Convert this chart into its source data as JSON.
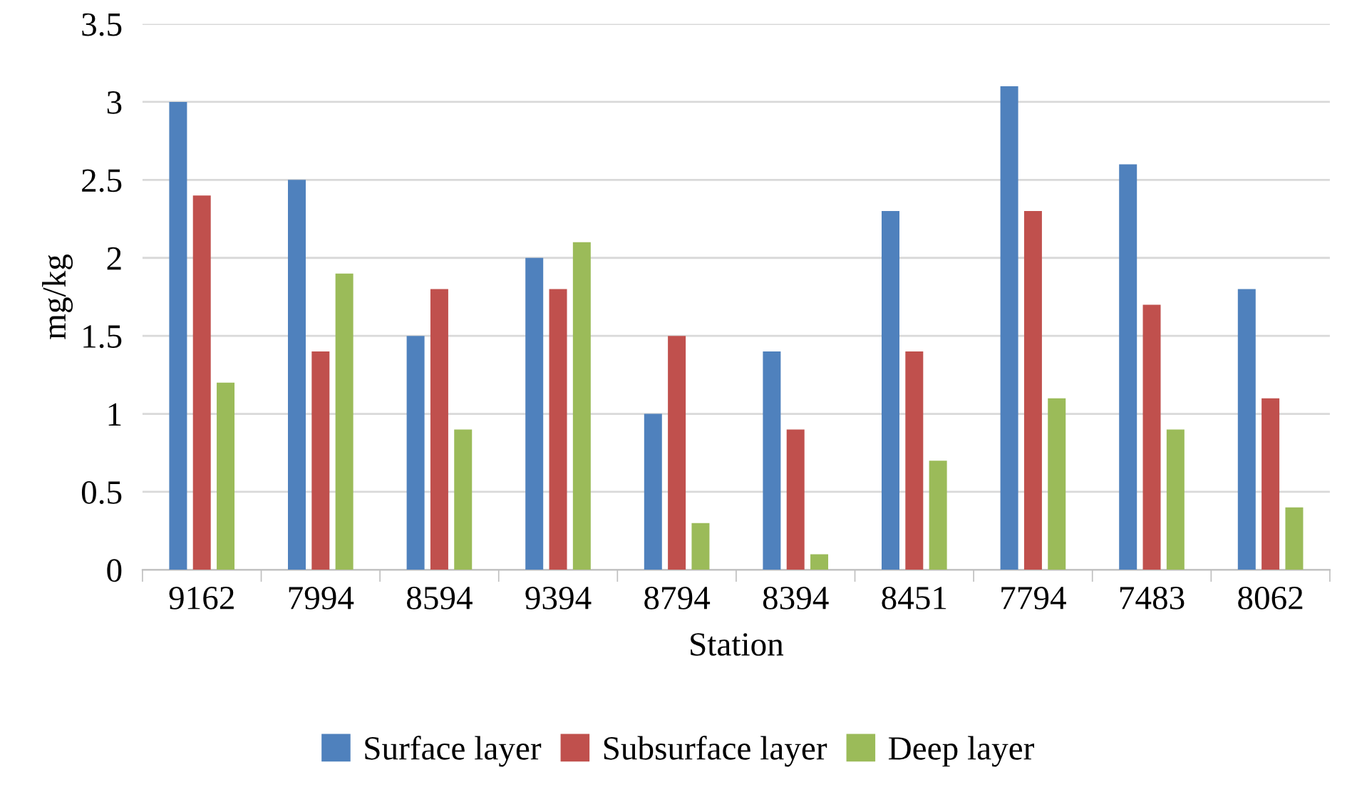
{
  "chart_data": {
    "type": "bar",
    "xlabel": "Station",
    "ylabel": "mg/kg",
    "categories": [
      "9162",
      "7994",
      "8594",
      "9394",
      "8794",
      "8394",
      "8451",
      "7794",
      "7483",
      "8062"
    ],
    "series": [
      {
        "name": "Surface layer",
        "color": "#4f81bd",
        "values": [
          3.0,
          2.5,
          1.5,
          2.0,
          1.0,
          1.4,
          2.3,
          3.1,
          2.6,
          1.8
        ]
      },
      {
        "name": "Subsurface layer",
        "color": "#c0504d",
        "values": [
          2.4,
          1.4,
          1.8,
          1.8,
          1.5,
          0.9,
          1.4,
          2.3,
          1.7,
          1.1
        ]
      },
      {
        "name": "Deep layer",
        "color": "#9bbb59",
        "values": [
          1.2,
          1.9,
          0.9,
          2.1,
          0.3,
          0.1,
          0.7,
          1.1,
          0.9,
          0.4
        ]
      }
    ],
    "ylim": [
      0,
      3.5
    ],
    "yticks": [
      0,
      0.5,
      1,
      {
        "value": 1.5,
        "label": "1.5"
      },
      2,
      {
        "value": 2.5,
        "label": "2.5"
      },
      3,
      {
        "value": 3.5,
        "label": "3.5"
      }
    ],
    "grid": "y",
    "legend": "bottom"
  }
}
